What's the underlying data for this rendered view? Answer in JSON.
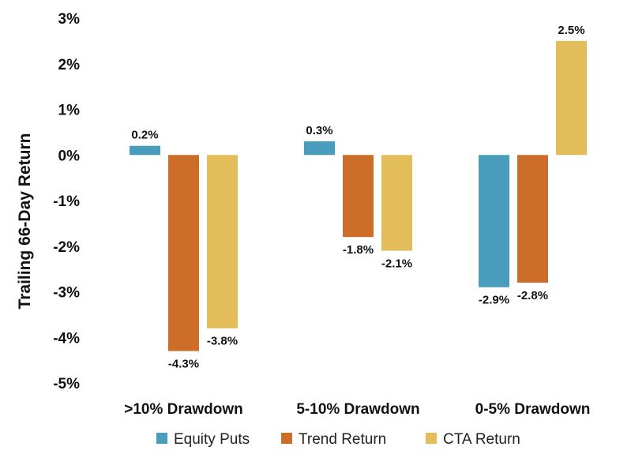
{
  "chart_data": {
    "type": "bar",
    "title": "",
    "xlabel": "",
    "ylabel": "Trailing 66-Day Return",
    "categories": [
      ">10% Drawdown",
      "5-10% Drawdown",
      "0-5% Drawdown"
    ],
    "series": [
      {
        "name": "Equity Puts",
        "color": "#4a9cbc",
        "values": [
          0.2,
          0.3,
          -2.9
        ],
        "labels": [
          "0.2%",
          "0.3%",
          "-2.9%"
        ]
      },
      {
        "name": "Trend Return",
        "color": "#cc6e2a",
        "values": [
          -4.3,
          -1.8,
          -2.8
        ],
        "labels": [
          "-4.3%",
          "-1.8%",
          "-2.8%"
        ]
      },
      {
        "name": "CTA Return",
        "color": "#e2bd5a",
        "values": [
          -3.8,
          -2.1,
          2.5
        ],
        "labels": [
          "-3.8%",
          "-2.1%",
          "2.5%"
        ]
      }
    ],
    "ylim": [
      -5,
      3
    ],
    "yticks": [
      3,
      2,
      1,
      0,
      -1,
      -2,
      -3,
      -4,
      -5
    ],
    "ytick_labels": [
      "3%",
      "2%",
      "1%",
      "0%",
      "-1%",
      "-2%",
      "-3%",
      "-4%",
      "-5%"
    ],
    "grid": false,
    "legend_position": "bottom"
  }
}
